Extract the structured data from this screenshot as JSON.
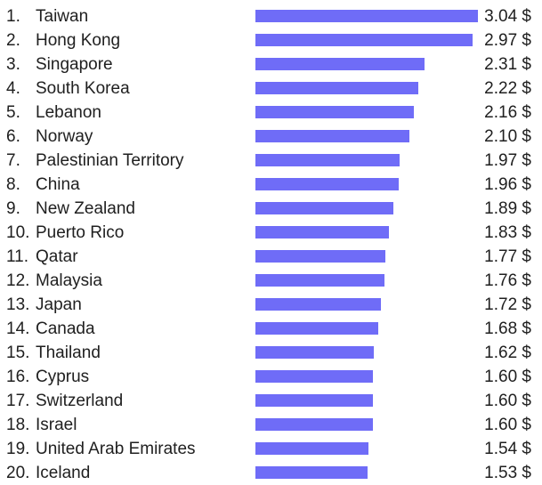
{
  "chart_data": {
    "type": "bar",
    "orientation": "horizontal",
    "bar_color": "#6f6cf7",
    "unit": "$",
    "rank_labels": [
      "1.",
      "2.",
      "3.",
      "4.",
      "5.",
      "6.",
      "7.",
      "8.",
      "9.",
      "10.",
      "11.",
      "12.",
      "13.",
      "14.",
      "15.",
      "16.",
      "17.",
      "18.",
      "19.",
      "20."
    ],
    "categories": [
      "Taiwan",
      "Hong Kong",
      "Singapore",
      "South Korea",
      "Lebanon",
      "Norway",
      "Palestinian Territory",
      "China",
      "New Zealand",
      "Puerto Rico",
      "Qatar",
      "Malaysia",
      "Japan",
      "Canada",
      "Thailand",
      "Cyprus",
      "Switzerland",
      "Israel",
      "United Arab Emirates",
      "Iceland"
    ],
    "values": [
      3.04,
      2.97,
      2.31,
      2.22,
      2.16,
      2.1,
      1.97,
      1.96,
      1.89,
      1.83,
      1.77,
      1.76,
      1.72,
      1.68,
      1.62,
      1.6,
      1.6,
      1.6,
      1.54,
      1.53
    ],
    "value_labels": [
      "3.04 $",
      "2.97 $",
      "2.31 $",
      "2.22 $",
      "2.16 $",
      "2.10 $",
      "1.97 $",
      "1.96 $",
      "1.89 $",
      "1.83 $",
      "1.77 $",
      "1.76 $",
      "1.72 $",
      "1.68 $",
      "1.62 $",
      "1.60 $",
      "1.60 $",
      "1.60 $",
      "1.54 $",
      "1.53 $"
    ]
  }
}
